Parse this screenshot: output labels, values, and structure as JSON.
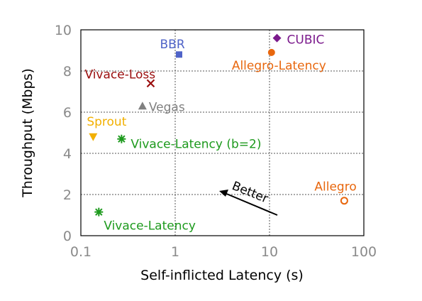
{
  "chart_data": {
    "type": "scatter",
    "xlabel": "Self-inflicted Latency (s)",
    "ylabel": "Throughput (Mbps)",
    "x_scale": "log",
    "xlim": [
      0.1,
      100
    ],
    "ylim": [
      0,
      10
    ],
    "x_ticks": [
      0.1,
      1,
      10,
      100
    ],
    "x_tick_labels": [
      "0.1",
      "1",
      "10",
      "100"
    ],
    "y_ticks": [
      0,
      2,
      4,
      6,
      8,
      10
    ],
    "y_tick_labels": [
      "0",
      "2",
      "4",
      "6",
      "8",
      "10"
    ],
    "grid": true,
    "points": [
      {
        "name": "BBR",
        "x": 1.1,
        "y": 8.8,
        "marker": "square",
        "color": "#4f63c8"
      },
      {
        "name": "CUBIC",
        "x": 12,
        "y": 9.6,
        "marker": "diamond",
        "color": "#7b1a8c"
      },
      {
        "name": "Allegro-Latency",
        "x": 10.5,
        "y": 8.9,
        "marker": "circle-filled",
        "color": "#e8670e"
      },
      {
        "name": "Vivace-Loss",
        "x": 0.55,
        "y": 7.4,
        "marker": "x",
        "color": "#9a0d0d"
      },
      {
        "name": "Vegas",
        "x": 0.45,
        "y": 6.3,
        "marker": "triangle-up",
        "color": "#808080"
      },
      {
        "name": "Sprout",
        "x": 0.135,
        "y": 4.8,
        "marker": "triangle-down",
        "color": "#f2b000"
      },
      {
        "name": "Vivace-Latency (b=2)",
        "x": 0.27,
        "y": 4.7,
        "marker": "asterisk",
        "color": "#1d9a1d"
      },
      {
        "name": "Allegro",
        "x": 62,
        "y": 1.7,
        "marker": "circle-open",
        "color": "#e8670e"
      },
      {
        "name": "Vivace-Latency",
        "x": 0.155,
        "y": 1.15,
        "marker": "asterisk",
        "color": "#1d9a1d"
      }
    ],
    "annotation": {
      "text": "Better"
    }
  }
}
